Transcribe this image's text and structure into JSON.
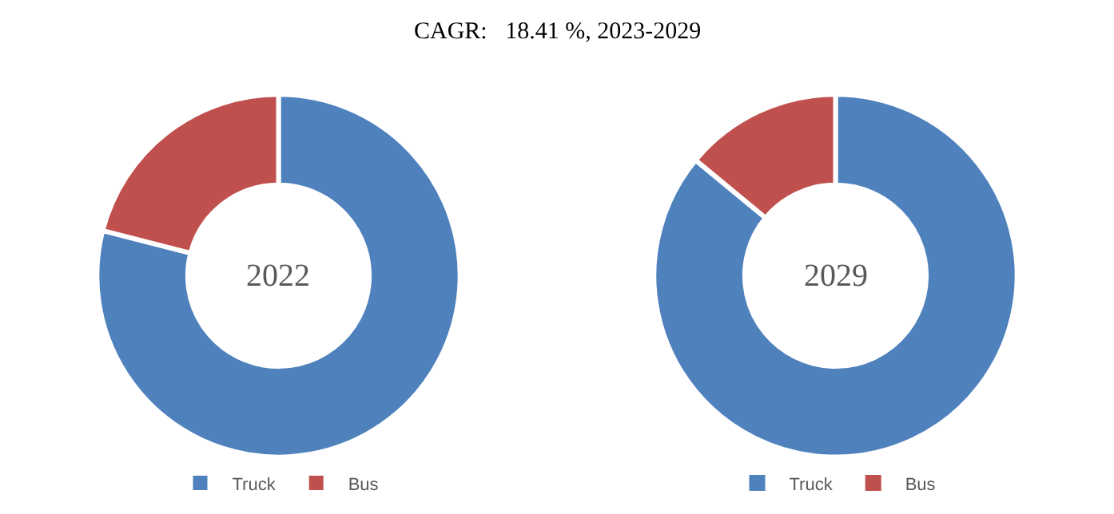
{
  "chart_data": [
    {
      "type": "donut",
      "title": "2022",
      "annotations": [
        "CAGR:   18.41 %, 2023-2029"
      ],
      "categories": [
        "Truck",
        "Bus"
      ],
      "values": [
        79,
        21
      ],
      "colors": [
        "#4f81bd",
        "#c0504d"
      ],
      "legend": "bottom"
    },
    {
      "type": "donut",
      "title": "2029",
      "categories": [
        "Truck",
        "Bus"
      ],
      "values": [
        86,
        14
      ],
      "colors": [
        "#4f81bd",
        "#c0504d"
      ],
      "legend": "bottom"
    }
  ]
}
